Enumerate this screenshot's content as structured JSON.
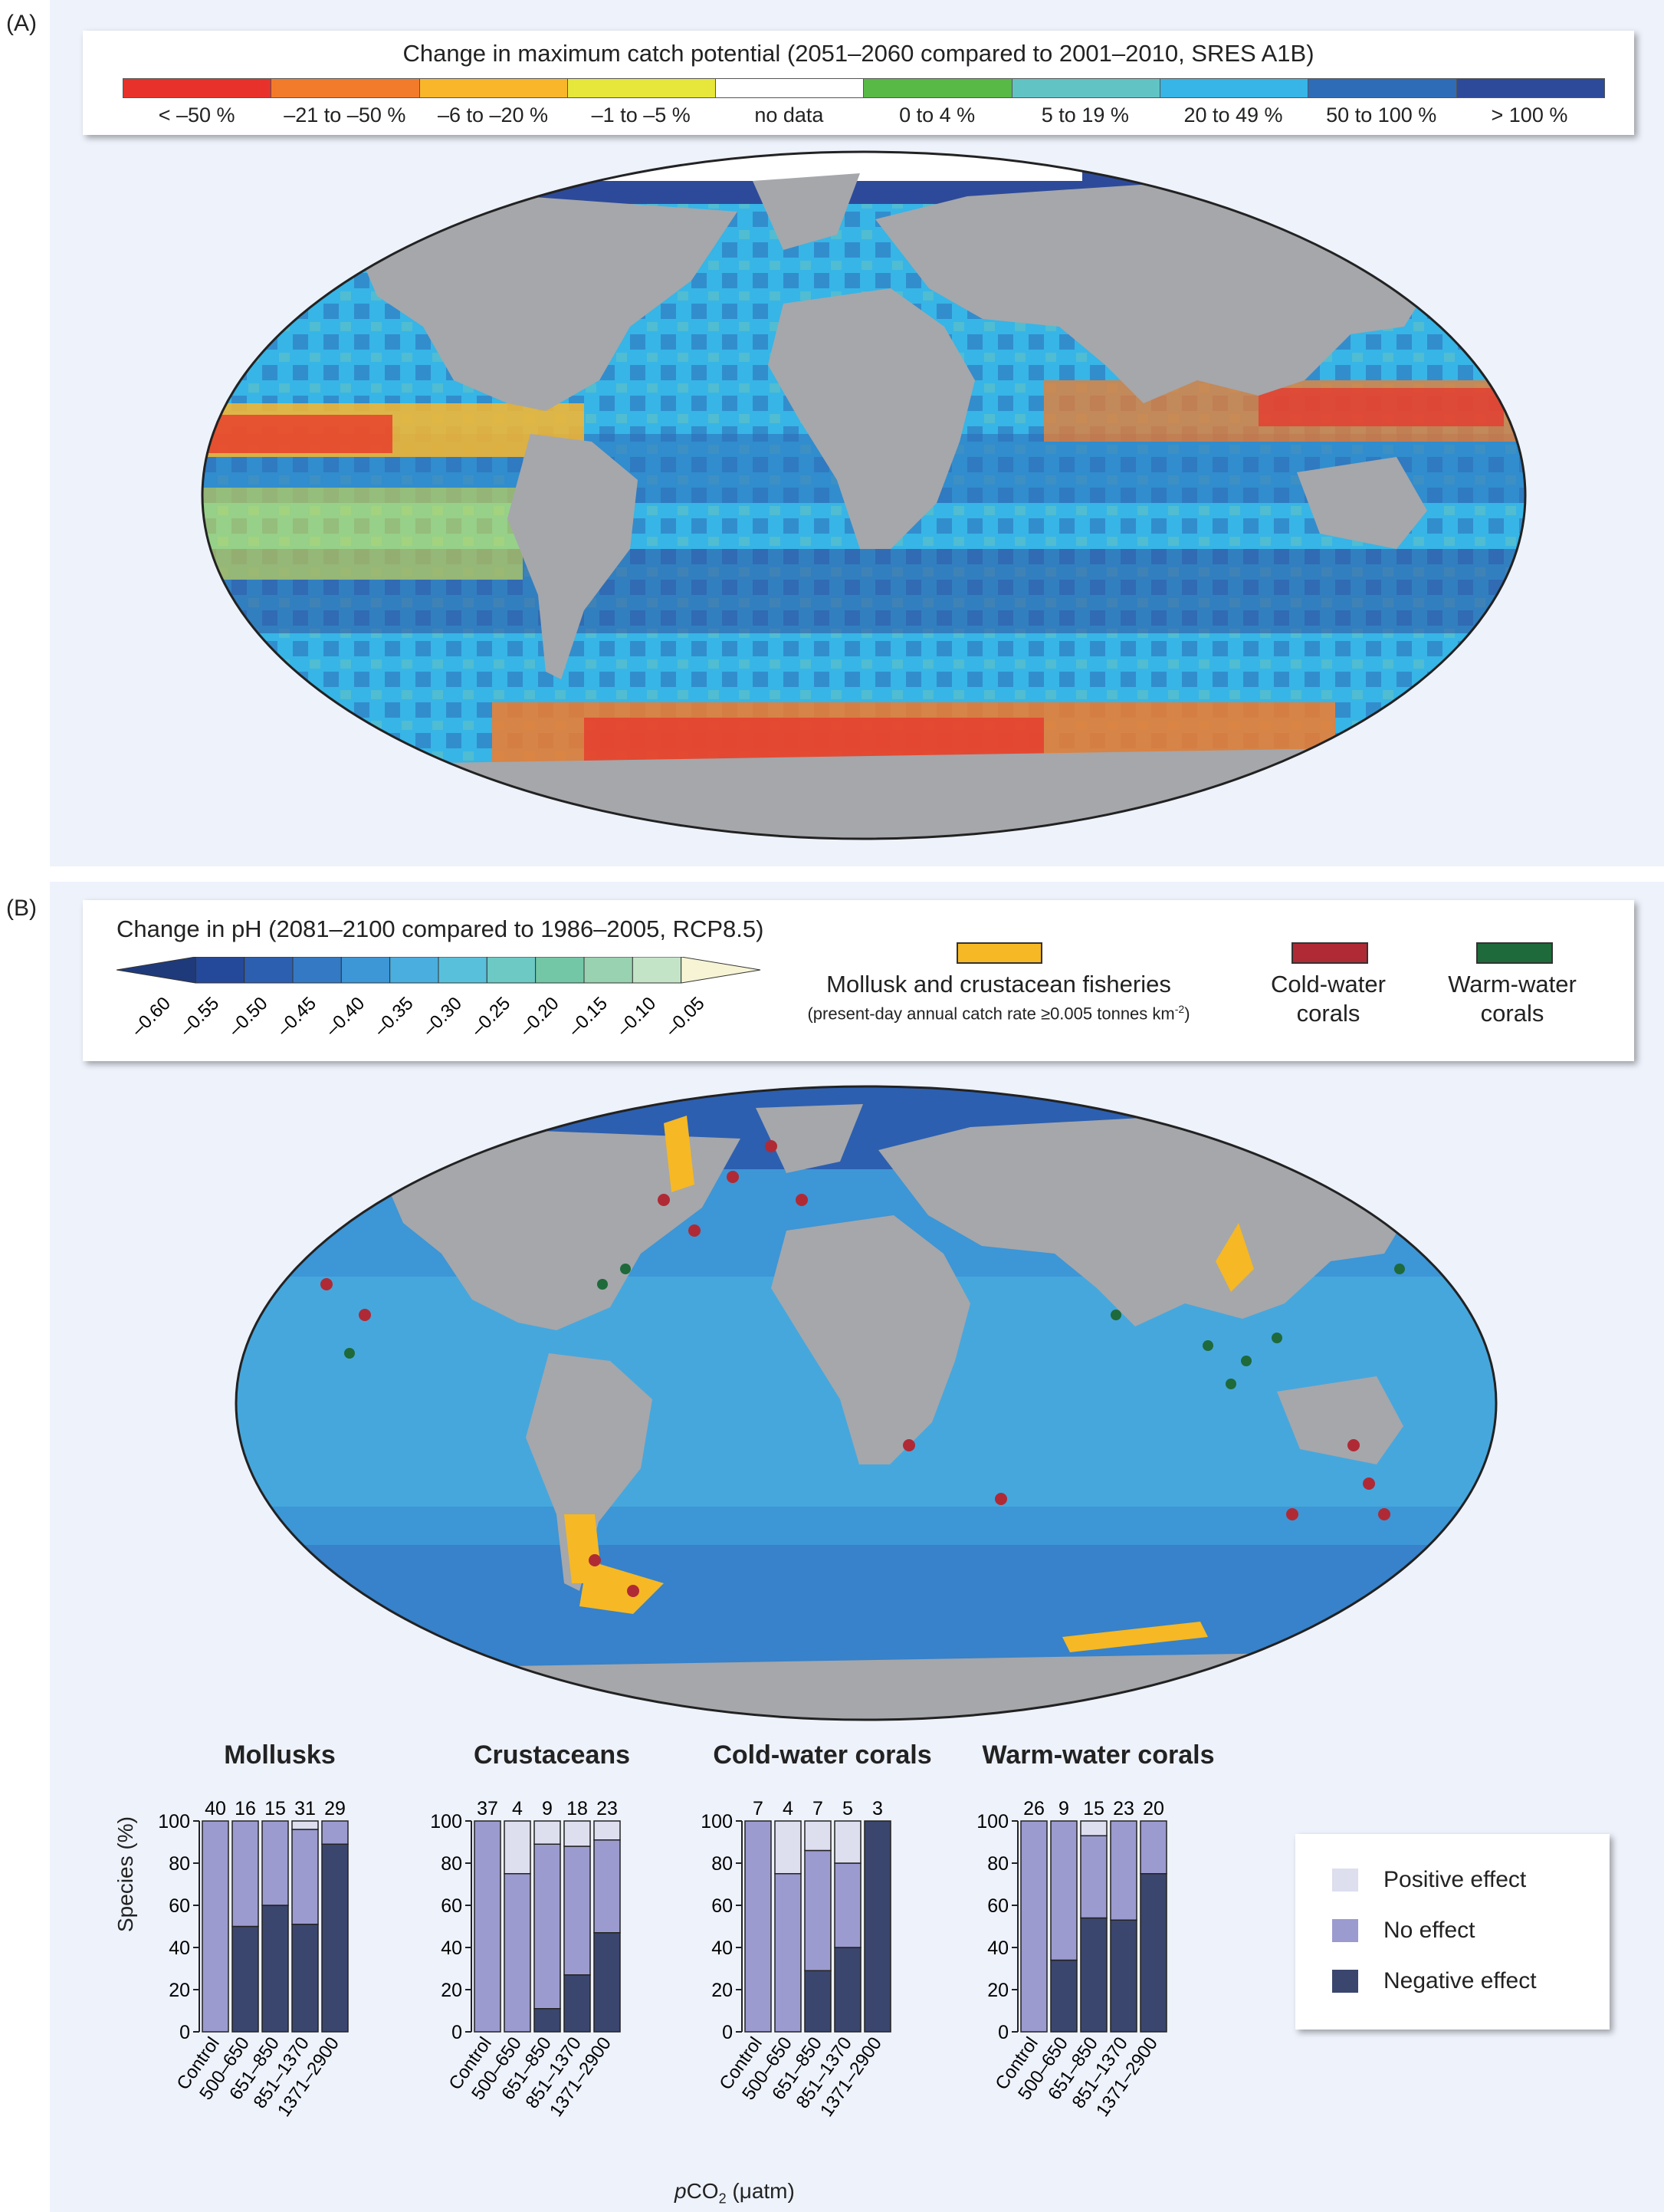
{
  "panel_a": {
    "label": "(A)",
    "legend_title": "Change in maximum catch potential (2051–2060 compared to 2001–2010, SRES A1B)",
    "classes": [
      {
        "label": "< –50 %",
        "color": "#e8312a"
      },
      {
        "label": "–21 to –50 %",
        "color": "#f27b2b"
      },
      {
        "label": "–6 to –20 %",
        "color": "#f9b62b"
      },
      {
        "label": "–1 to –5 %",
        "color": "#e7e63a"
      },
      {
        "label": "no data",
        "color": "#ffffff"
      },
      {
        "label": "0 to 4 %",
        "color": "#58b947"
      },
      {
        "label": "5 to 19 %",
        "color": "#62c3c4"
      },
      {
        "label": "20 to 49 %",
        "color": "#37b5e6"
      },
      {
        "label": "50 to 100 %",
        "color": "#2e6cb8"
      },
      {
        "label": "> 100 %",
        "color": "#2d4a9a"
      }
    ]
  },
  "panel_b": {
    "label": "(B)",
    "ph_title": "Change in pH (2081–2100 compared to 1986–2005, RCP8.5)",
    "ph_ticks": [
      "–0.60",
      "–0.55",
      "–0.50",
      "–0.45",
      "–0.40",
      "–0.35",
      "–0.30",
      "–0.25",
      "–0.20",
      "–0.15",
      "–0.10",
      "–0.05"
    ],
    "ph_colors": [
      "#1f3a7a",
      "#24489a",
      "#2c5fb0",
      "#3479c4",
      "#3d96d6",
      "#4aaedf",
      "#59c0dc",
      "#6cc9c4",
      "#73c7a6",
      "#98d2b0",
      "#c4e4c8",
      "#f6f4d4"
    ],
    "overlay_legend": {
      "mollusk_title": "Mollusk and crustacean fisheries",
      "mollusk_sub": "(present-day annual catch rate ≥0.005 tonnes km",
      "mollusk_sup": "-2",
      "mollusk_sub_close": ")",
      "mollusk_color": "#f6b824",
      "cold_label_1": "Cold-water",
      "cold_label_2": "corals",
      "cold_color": "#b02a35",
      "warm_label_1": "Warm-water",
      "warm_label_2": "corals",
      "warm_color": "#1e6a3a"
    }
  },
  "bars": {
    "y_label": "Species (%)",
    "x_label_italic": "p",
    "x_label_rest": "CO",
    "x_label_sub": "2",
    "x_label_unit": " (μatm)",
    "y_ticks": [
      "0",
      "20",
      "40",
      "60",
      "80",
      "100"
    ],
    "legend": [
      {
        "label": "Positive effect",
        "color": "#dddeee"
      },
      {
        "label": "No effect",
        "color": "#9b9bd0"
      },
      {
        "label": "Negative effect",
        "color": "#3b466e"
      }
    ]
  },
  "chart_data": [
    {
      "type": "bar",
      "title": "Mollusks",
      "categories": [
        "Control",
        "500–650",
        "651–850",
        "851–1370",
        "1371–2900"
      ],
      "counts": [
        "40",
        "16",
        "15",
        "31",
        "29"
      ],
      "ylabel": "Species (%)",
      "ylim": [
        0,
        100
      ],
      "series": [
        {
          "name": "Negative effect",
          "values": [
            0,
            50,
            60,
            51,
            89
          ]
        },
        {
          "name": "No effect",
          "values": [
            100,
            50,
            40,
            45,
            11
          ]
        },
        {
          "name": "Positive effect",
          "values": [
            0,
            0,
            0,
            4,
            0
          ]
        }
      ]
    },
    {
      "type": "bar",
      "title": "Crustaceans",
      "categories": [
        "Control",
        "500–650",
        "651–850",
        "851–1370",
        "1371–2900"
      ],
      "counts": [
        "37",
        "4",
        "9",
        "18",
        "23"
      ],
      "ylabel": "Species (%)",
      "ylim": [
        0,
        100
      ],
      "series": [
        {
          "name": "Negative effect",
          "values": [
            0,
            0,
            11,
            27,
            47
          ]
        },
        {
          "name": "No effect",
          "values": [
            100,
            75,
            78,
            61,
            44
          ]
        },
        {
          "name": "Positive effect",
          "values": [
            0,
            25,
            11,
            12,
            9
          ]
        }
      ]
    },
    {
      "type": "bar",
      "title": "Cold-water corals",
      "categories": [
        "Control",
        "500–650",
        "651–850",
        "851–1370",
        "1371–2900"
      ],
      "counts": [
        "7",
        "4",
        "7",
        "5",
        "3"
      ],
      "ylabel": "Species (%)",
      "ylim": [
        0,
        100
      ],
      "series": [
        {
          "name": "Negative effect",
          "values": [
            0,
            0,
            29,
            40,
            100
          ]
        },
        {
          "name": "No effect",
          "values": [
            100,
            75,
            57,
            40,
            0
          ]
        },
        {
          "name": "Positive effect",
          "values": [
            0,
            25,
            14,
            20,
            0
          ]
        }
      ]
    },
    {
      "type": "bar",
      "title": "Warm-water corals",
      "categories": [
        "Control",
        "500–650",
        "651–850",
        "851–1370",
        "1371–2900"
      ],
      "counts": [
        "26",
        "9",
        "15",
        "23",
        "20"
      ],
      "ylabel": "Species (%)",
      "ylim": [
        0,
        100
      ],
      "series": [
        {
          "name": "Negative effect",
          "values": [
            0,
            34,
            54,
            53,
            75
          ]
        },
        {
          "name": "No effect",
          "values": [
            100,
            66,
            39,
            47,
            25
          ]
        },
        {
          "name": "Positive effect",
          "values": [
            0,
            0,
            7,
            0,
            0
          ]
        }
      ]
    }
  ]
}
